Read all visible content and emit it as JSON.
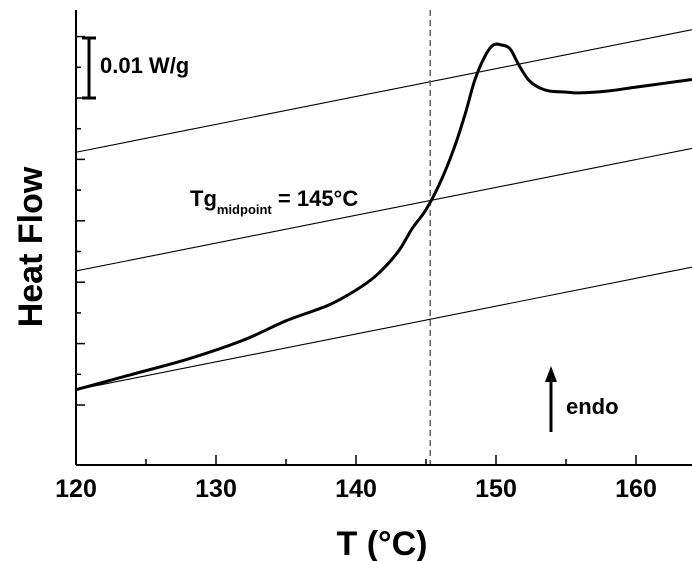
{
  "chart_data": {
    "type": "line",
    "xlabel": "T (°C)",
    "ylabel": "Heat Flow",
    "xlim": [
      120,
      164
    ],
    "ylim": [
      0,
      1
    ],
    "x_ticks": [
      "120",
      "130",
      "140",
      "150",
      "160"
    ],
    "y_ticks_labeled": false,
    "grid": false,
    "series": [
      {
        "x": [
          120,
          124,
          128,
          132,
          135,
          138,
          140,
          141.5,
          143,
          144,
          145,
          146,
          147,
          147.8,
          148.5,
          149.2,
          149.8,
          150.4,
          151.0,
          151.6,
          152.3,
          153.0,
          153.8,
          155,
          156,
          158,
          160,
          162,
          164
        ],
        "y": [
          0.1,
          0.14,
          0.18,
          0.23,
          0.28,
          0.32,
          0.36,
          0.4,
          0.46,
          0.52,
          0.57,
          0.64,
          0.73,
          0.82,
          0.91,
          0.97,
          1.0,
          1.0,
          0.99,
          0.95,
          0.91,
          0.89,
          0.88,
          0.877,
          0.875,
          0.88,
          0.89,
          0.9,
          0.91
        ]
      }
    ],
    "tangent_lines": [
      {
        "x": [
          120,
          164
        ],
        "y": [
          0.1,
          0.42
        ]
      },
      {
        "x": [
          120,
          164
        ],
        "y": [
          0.41,
          0.73
        ]
      },
      {
        "x": [
          120,
          164
        ],
        "y": [
          0.72,
          1.04
        ]
      }
    ],
    "reference_line": {
      "x": 145.3,
      "style": "dashed"
    },
    "annotations": {
      "scale_bar": "0.01 W/g",
      "tg_main": "Tg",
      "tg_sub": "midpoint",
      "tg_value": " = 145°C",
      "endo": "endo"
    }
  }
}
